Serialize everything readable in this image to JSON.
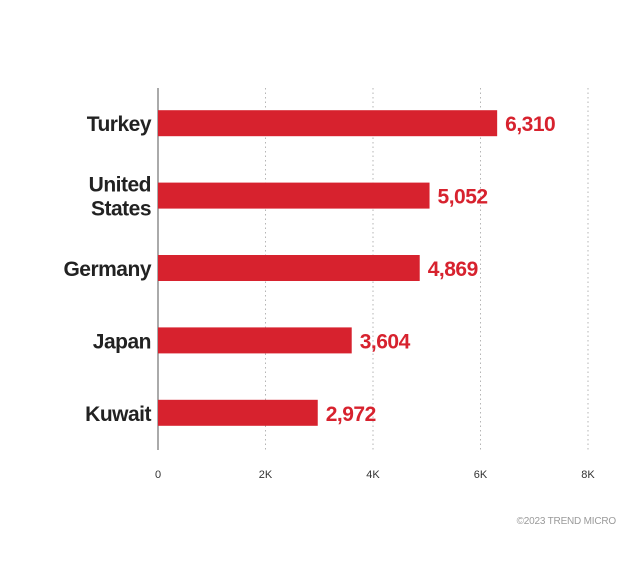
{
  "chart_data": {
    "type": "bar",
    "orientation": "horizontal",
    "categories": [
      "Turkey",
      "United States",
      "Germany",
      "Japan",
      "Kuwait"
    ],
    "category_lines": [
      [
        "Turkey"
      ],
      [
        "United",
        "States"
      ],
      [
        "Germany"
      ],
      [
        "Japan"
      ],
      [
        "Kuwait"
      ]
    ],
    "values": [
      6310,
      5052,
      4869,
      3604,
      2972
    ],
    "value_labels": [
      "6,310",
      "5,052",
      "4,869",
      "3,604",
      "2,972"
    ],
    "xlim": [
      0,
      8000
    ],
    "xticks": [
      0,
      2000,
      4000,
      6000,
      8000
    ],
    "xtick_labels": [
      "0",
      "2K",
      "4K",
      "6K",
      "8K"
    ],
    "grid": "vertical dotted",
    "bar_color": "#d7222e",
    "label_color": "#d7222e"
  },
  "footer": {
    "copyright": "©2023 TREND MICRO"
  }
}
